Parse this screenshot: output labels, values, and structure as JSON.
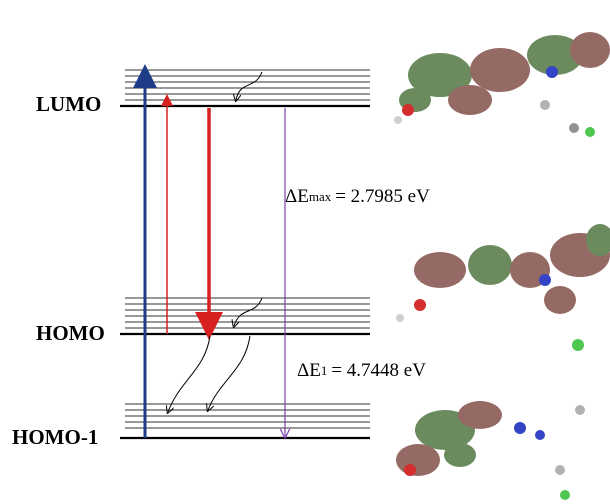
{
  "levels": [
    {
      "label": "LUMO"
    },
    {
      "label": "HOMO"
    },
    {
      "label": "HOMO-1"
    }
  ],
  "gaps": [
    {
      "symbol": "ΔE",
      "subscript": "max",
      "text": "= 2.7985 eV"
    },
    {
      "symbol": "ΔE",
      "subscript": "1",
      "text": "= 4.7448 eV"
    }
  ]
}
